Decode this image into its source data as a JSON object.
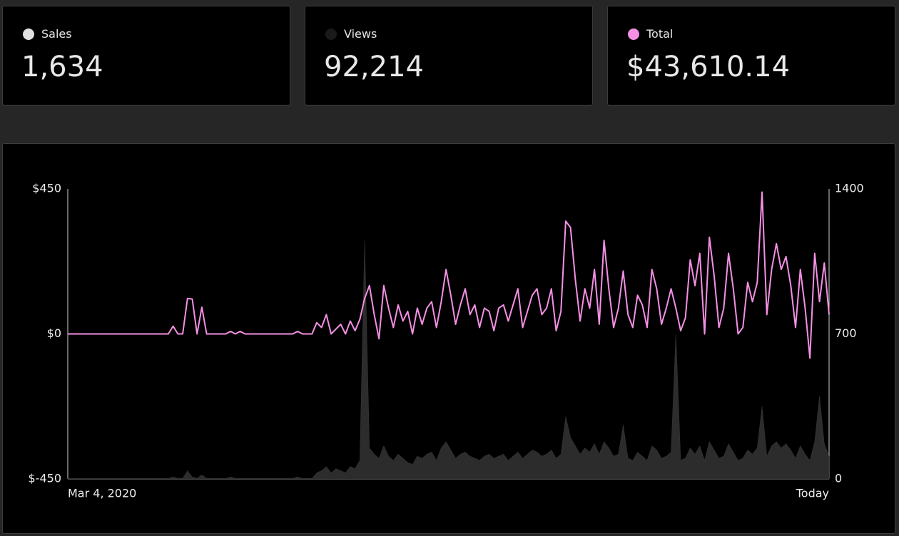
{
  "cards": [
    {
      "label": "Sales",
      "value": "1,634",
      "color": "#e0e0e0"
    },
    {
      "label": "Views",
      "value": "92,214",
      "color": "#1a1a1a"
    },
    {
      "label": "Total",
      "value": "$43,610.14",
      "color": "#f590e4"
    }
  ],
  "chart_data": {
    "type": "line",
    "categories": [
      "Mar 4, 2020",
      null,
      null,
      null,
      null,
      null,
      null,
      null,
      null,
      null,
      null,
      null,
      null,
      null,
      null,
      null,
      null,
      null,
      null,
      null,
      null,
      null,
      null,
      null,
      null,
      null,
      null,
      null,
      null,
      null,
      null,
      null,
      null,
      null,
      null,
      null,
      null,
      null,
      null,
      null,
      null,
      null,
      null,
      null,
      null,
      null,
      null,
      null,
      null,
      null,
      null,
      null,
      null,
      null,
      null,
      null,
      null,
      null,
      null,
      null,
      null,
      null,
      null,
      null,
      null,
      null,
      null,
      null,
      null,
      null,
      null,
      null,
      null,
      null,
      null,
      null,
      null,
      null,
      null,
      null,
      null,
      null,
      null,
      null,
      null,
      null,
      null,
      null,
      null,
      null,
      null,
      null,
      null,
      null,
      null,
      null,
      null,
      null,
      null,
      null,
      null,
      null,
      null,
      null,
      null,
      null,
      null,
      null,
      null,
      null,
      null,
      null,
      null,
      null,
      null,
      null,
      null,
      null,
      null,
      null,
      null,
      null,
      null,
      null,
      null,
      null,
      null,
      null,
      null,
      null,
      null,
      null,
      null,
      null,
      null,
      null,
      null,
      null,
      null,
      null,
      null,
      null,
      null,
      null,
      null,
      null,
      null,
      null,
      null,
      null,
      null,
      null,
      null,
      null,
      null,
      null,
      null,
      null,
      null,
      "Today"
    ],
    "series": [
      {
        "name": "Total",
        "color": "#f590e4",
        "axis": "y",
        "values": [
          0,
          0,
          0,
          0,
          0,
          0,
          0,
          0,
          0,
          0,
          0,
          0,
          0,
          0,
          0,
          0,
          0,
          0,
          0,
          0,
          0,
          0,
          24,
          0,
          0,
          110,
          108,
          0,
          83,
          0,
          0,
          0,
          0,
          0,
          8,
          0,
          8,
          0,
          0,
          0,
          0,
          0,
          0,
          0,
          0,
          0,
          0,
          0,
          8,
          0,
          0,
          0,
          35,
          20,
          60,
          0,
          15,
          30,
          0,
          40,
          10,
          45,
          110,
          150,
          60,
          -15,
          150,
          80,
          20,
          90,
          40,
          70,
          0,
          80,
          30,
          80,
          100,
          20,
          100,
          200,
          120,
          30,
          90,
          140,
          60,
          90,
          20,
          80,
          70,
          10,
          80,
          90,
          40,
          90,
          140,
          20,
          70,
          120,
          140,
          60,
          80,
          140,
          10,
          70,
          350,
          330,
          170,
          40,
          140,
          80,
          200,
          30,
          290,
          140,
          20,
          80,
          195,
          60,
          20,
          120,
          90,
          20,
          200,
          140,
          30,
          80,
          140,
          80,
          10,
          50,
          230,
          150,
          250,
          0,
          300,
          180,
          20,
          80,
          250,
          140,
          0,
          20,
          160,
          100,
          160,
          440,
          60,
          200,
          280,
          200,
          240,
          150,
          20,
          200,
          80,
          -75,
          250,
          100,
          220,
          60
        ]
      },
      {
        "name": "Views",
        "color": "#2c2c2c",
        "axis": "y2",
        "values": [
          3,
          3,
          3,
          3,
          3,
          3,
          3,
          3,
          3,
          3,
          3,
          3,
          3,
          3,
          3,
          3,
          3,
          3,
          3,
          3,
          3,
          3,
          10,
          3,
          3,
          40,
          10,
          3,
          20,
          3,
          3,
          3,
          3,
          3,
          10,
          3,
          3,
          3,
          3,
          3,
          3,
          3,
          3,
          3,
          3,
          3,
          3,
          3,
          10,
          3,
          3,
          3,
          30,
          40,
          60,
          30,
          50,
          40,
          30,
          60,
          50,
          90,
          1150,
          150,
          120,
          100,
          160,
          110,
          90,
          120,
          100,
          80,
          70,
          110,
          100,
          120,
          130,
          90,
          150,
          180,
          140,
          100,
          120,
          130,
          110,
          100,
          90,
          110,
          120,
          100,
          110,
          120,
          90,
          110,
          130,
          100,
          120,
          140,
          130,
          110,
          120,
          140,
          100,
          120,
          300,
          200,
          160,
          120,
          150,
          130,
          170,
          120,
          180,
          150,
          110,
          120,
          260,
          100,
          90,
          130,
          110,
          90,
          160,
          140,
          100,
          110,
          130,
          700,
          90,
          100,
          150,
          120,
          160,
          90,
          180,
          140,
          100,
          110,
          170,
          130,
          90,
          100,
          140,
          120,
          150,
          350,
          110,
          160,
          180,
          150,
          170,
          140,
          100,
          160,
          120,
          90,
          180,
          400,
          170,
          110
        ]
      }
    ],
    "ylim": [
      -450,
      450
    ],
    "yticks": [
      {
        "value": 450,
        "label": "$450"
      },
      {
        "value": 0,
        "label": "$0"
      },
      {
        "value": -450,
        "label": "$-450"
      }
    ],
    "y2lim": [
      0,
      1400
    ],
    "y2ticks": [
      1400,
      700,
      0
    ]
  }
}
